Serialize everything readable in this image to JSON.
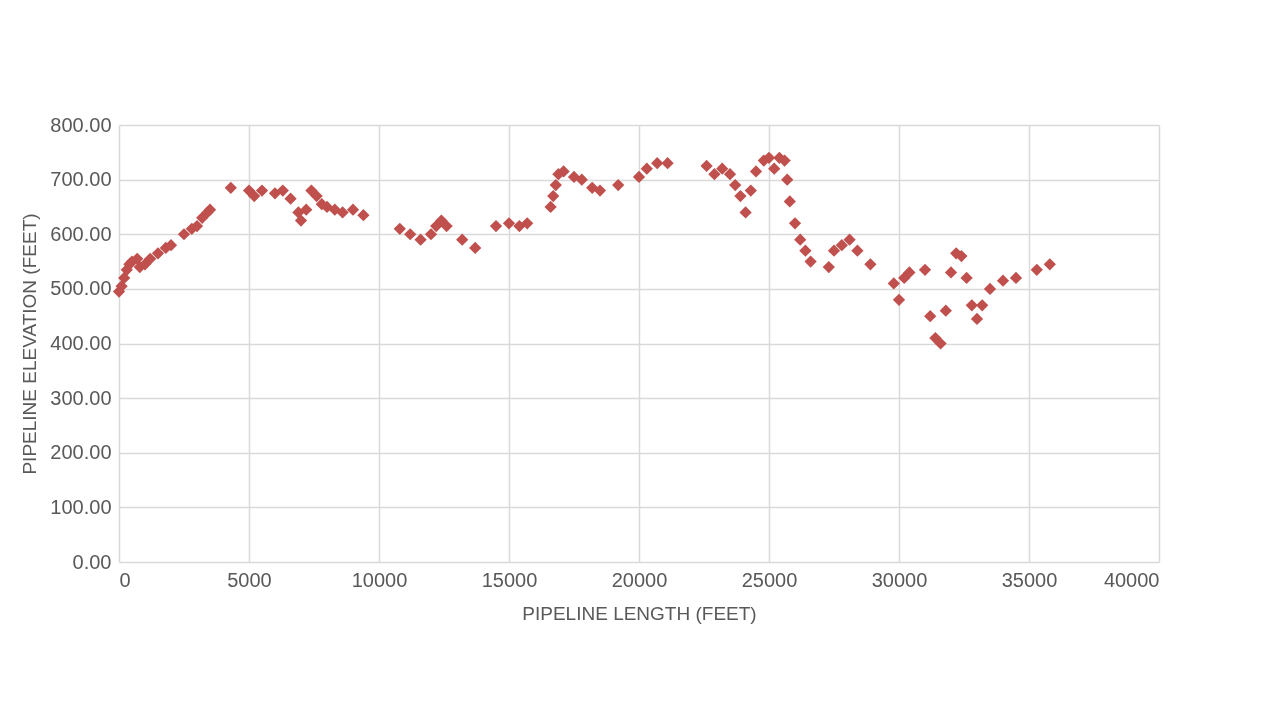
{
  "chart_data": {
    "type": "scatter",
    "xlabel": "PIPELINE LENGTH (FEET)",
    "ylabel": "PIPELINE ELEVATION (FEET)",
    "marker": "diamond",
    "grid": true,
    "xlim": [
      0,
      40000
    ],
    "xticks": [
      0,
      5000,
      10000,
      15000,
      20000,
      25000,
      30000,
      35000,
      40000
    ],
    "ylim": [
      0,
      800
    ],
    "yticks": [
      {
        "value": 0,
        "label": "0.00"
      },
      {
        "value": 100,
        "label": "100.00"
      },
      {
        "value": 200,
        "label": "200.00"
      },
      {
        "value": 300,
        "label": "300.00"
      },
      {
        "value": 400,
        "label": "400.00"
      },
      {
        "value": 500,
        "label": "500.00"
      },
      {
        "value": 600,
        "label": "600.00"
      },
      {
        "value": 700,
        "label": "700.00"
      },
      {
        "value": 800,
        "label": "800.00"
      }
    ],
    "x": [
      0,
      100,
      200,
      300,
      400,
      500,
      700,
      800,
      1000,
      1200,
      1500,
      1800,
      2000,
      2500,
      2800,
      3000,
      3200,
      3400,
      3500,
      4300,
      5000,
      5200,
      5500,
      6000,
      6300,
      6600,
      6900,
      7000,
      7200,
      7400,
      7600,
      7800,
      8000,
      8300,
      8600,
      9000,
      9400,
      10800,
      11200,
      11600,
      12000,
      12200,
      12400,
      12600,
      13200,
      13700,
      14500,
      15000,
      15400,
      15700,
      16600,
      16700,
      16800,
      16900,
      17100,
      17500,
      17800,
      18200,
      18500,
      19200,
      20000,
      20300,
      20700,
      21100,
      22600,
      22900,
      23200,
      23500,
      23700,
      23900,
      24100,
      24300,
      24500,
      24800,
      25000,
      25200,
      25400,
      25600,
      25700,
      25800,
      26000,
      26200,
      26400,
      26600,
      27300,
      27500,
      27800,
      28100,
      28400,
      28900,
      29800,
      30000,
      30200,
      30400,
      31000,
      31200,
      31400,
      31600,
      31800,
      32000,
      32200,
      32400,
      32600,
      32800,
      33000,
      33200,
      33500,
      34000,
      34500,
      35300,
      35800
    ],
    "series": [
      {
        "color": "#c0504d",
        "values": [
          495,
          505,
          520,
          535,
          545,
          550,
          555,
          540,
          545,
          555,
          565,
          575,
          580,
          600,
          610,
          615,
          630,
          640,
          645,
          685,
          680,
          670,
          680,
          675,
          680,
          665,
          640,
          625,
          645,
          680,
          670,
          655,
          650,
          645,
          640,
          645,
          635,
          610,
          600,
          590,
          600,
          615,
          625,
          615,
          590,
          575,
          615,
          620,
          615,
          620,
          650,
          670,
          690,
          710,
          715,
          705,
          700,
          685,
          680,
          690,
          705,
          720,
          730,
          730,
          725,
          710,
          720,
          710,
          690,
          670,
          640,
          680,
          715,
          735,
          740,
          720,
          740,
          735,
          700,
          660,
          620,
          590,
          570,
          550,
          540,
          570,
          580,
          590,
          570,
          545,
          510,
          480,
          520,
          530,
          535,
          450,
          410,
          400,
          460,
          530,
          565,
          560,
          520,
          470,
          445,
          470,
          500,
          515,
          520,
          535,
          545
        ]
      }
    ]
  }
}
